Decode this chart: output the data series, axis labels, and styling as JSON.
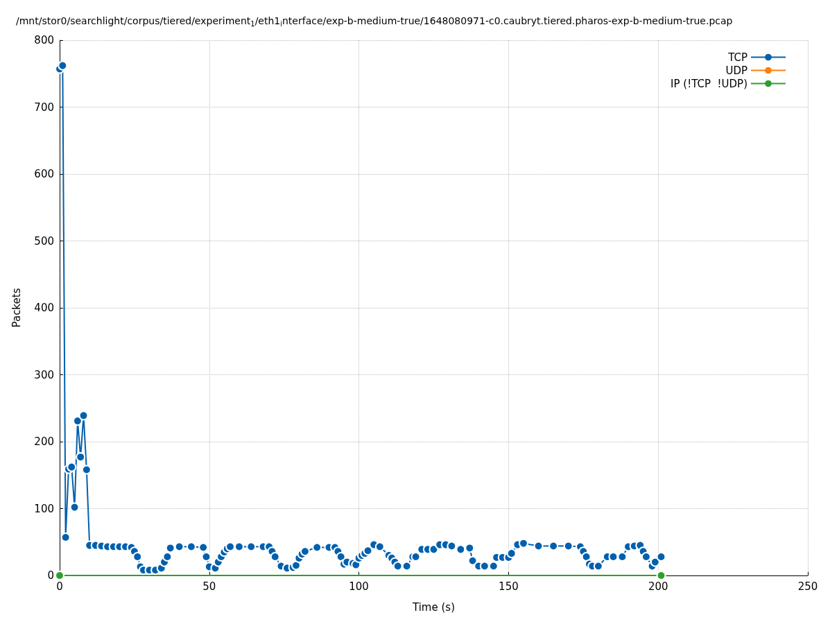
{
  "chart_data": {
    "type": "line",
    "title": "/mnt/stor0/searchlight/corpus/tiered/experiment$_{1}$/eth1$_{i}$nterface/exp-b-medium-true/1648080971-c0.caubryt.tiered.pharos-exp-b-medium-true.pcap",
    "xlabel": "Time (s)",
    "ylabel": "Packets",
    "x": [
      0,
      1,
      2,
      3,
      4,
      5,
      6,
      7,
      8,
      9,
      10,
      12,
      14,
      16,
      18,
      20,
      22,
      24,
      25,
      26,
      27,
      28,
      30,
      32,
      34,
      35,
      36,
      37,
      40,
      44,
      48,
      49,
      50,
      52,
      53,
      54,
      55,
      56,
      57,
      60,
      64,
      68,
      70,
      71,
      72,
      74,
      76,
      78,
      79,
      80,
      81,
      82,
      86,
      90,
      92,
      93,
      94,
      95,
      96,
      98,
      99,
      100,
      101,
      102,
      103,
      105,
      107,
      110,
      111,
      112,
      113,
      116,
      118,
      119,
      121,
      123,
      125,
      127,
      129,
      131,
      134,
      137,
      138,
      140,
      142,
      145,
      146,
      148,
      150,
      151,
      153,
      155,
      160,
      165,
      170,
      174,
      175,
      176,
      177,
      178,
      180,
      183,
      185,
      188,
      190,
      192,
      194,
      195,
      196,
      198,
      199,
      201
    ],
    "series": [
      {
        "name": "TCP",
        "color": "#0060ad",
        "values": [
          757,
          762,
          57,
          159,
          162,
          102,
          231,
          177,
          239,
          158,
          45,
          45,
          44,
          43,
          43,
          43,
          43,
          42,
          36,
          28,
          13,
          8,
          8,
          8,
          11,
          20,
          28,
          41,
          43,
          43,
          42,
          28,
          13,
          11,
          20,
          28,
          35,
          40,
          43,
          43,
          43,
          43,
          43,
          36,
          28,
          14,
          11,
          12,
          15,
          26,
          32,
          36,
          42,
          42,
          42,
          36,
          28,
          17,
          20,
          18,
          16,
          26,
          30,
          33,
          37,
          46,
          43,
          30,
          26,
          20,
          14,
          14,
          28,
          28,
          39,
          39,
          39,
          46,
          46,
          44,
          39,
          41,
          22,
          14,
          14,
          14,
          27,
          27,
          27,
          33,
          46,
          48,
          44,
          44,
          44,
          43,
          36,
          28,
          17,
          14,
          14,
          28,
          28,
          28,
          43,
          44,
          45,
          36,
          28,
          14,
          20,
          28
        ]
      },
      {
        "name": "UDP",
        "color": "#ff7f0e",
        "values": [
          null,
          null,
          null,
          null,
          null,
          null,
          null,
          null,
          null,
          null,
          null,
          null,
          null,
          null,
          null,
          null,
          null,
          null,
          null,
          null,
          null,
          null,
          null,
          null,
          null,
          null,
          null,
          null,
          null,
          null,
          null,
          null,
          null,
          null,
          null,
          null,
          null,
          null,
          null,
          null,
          null,
          null,
          null,
          null,
          null,
          null,
          null,
          null,
          null,
          null,
          null,
          null,
          null,
          null,
          null,
          null,
          null,
          null,
          null,
          null,
          null,
          null,
          null,
          null,
          null,
          null,
          null,
          null,
          null,
          null,
          null,
          null,
          null,
          null,
          null,
          null,
          null,
          null,
          null,
          null,
          null,
          null,
          null,
          null,
          null,
          null,
          null,
          null,
          null,
          null,
          null,
          null,
          null,
          null,
          null,
          null,
          null,
          null,
          null,
          null,
          null,
          null,
          null,
          null,
          null,
          null,
          null,
          null,
          null,
          null,
          null,
          null
        ]
      },
      {
        "name": "IP (!TCP  !UDP)",
        "color": "#2ca02c",
        "x": [
          0,
          201
        ],
        "values": [
          0,
          0
        ]
      }
    ],
    "xlim": [
      0,
      250
    ],
    "xticks": [
      0,
      50,
      100,
      150,
      200,
      250
    ],
    "ylim": [
      0,
      800
    ],
    "yticks": [
      0,
      100,
      200,
      300,
      400,
      500,
      600,
      700,
      800
    ],
    "grid": true,
    "legend": "top right",
    "marker": "circle",
    "line_style": "solid"
  }
}
